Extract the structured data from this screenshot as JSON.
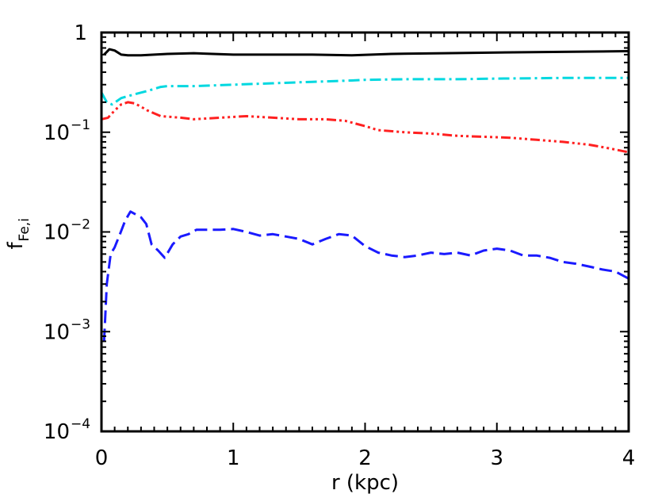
{
  "chart_data": {
    "type": "line",
    "title": "",
    "xlabel": "r (kpc)",
    "ylabel_main": "f",
    "ylabel_sub": "Fe,i",
    "xlim": [
      0,
      4
    ],
    "ylim": [
      0.0001,
      1
    ],
    "yscale": "log",
    "grid": false,
    "x_ticks": [
      {
        "value": 0,
        "label": "0"
      },
      {
        "value": 1,
        "label": "1"
      },
      {
        "value": 2,
        "label": "2"
      },
      {
        "value": 3,
        "label": "3"
      },
      {
        "value": 4,
        "label": "4"
      }
    ],
    "y_ticks": [
      {
        "value": 1,
        "base": "1",
        "exp": ""
      },
      {
        "value": 0.1,
        "base": "10",
        "exp": "−1"
      },
      {
        "value": 0.01,
        "base": "10",
        "exp": "−2"
      },
      {
        "value": 0.001,
        "base": "10",
        "exp": "−3"
      },
      {
        "value": 0.0001,
        "base": "10",
        "exp": "−4"
      }
    ],
    "series": [
      {
        "color": "#000000",
        "dash": "solid",
        "x": [
          0.02,
          0.06,
          0.1,
          0.15,
          0.2,
          0.3,
          0.5,
          0.7,
          1.0,
          1.3,
          1.6,
          1.9,
          2.2,
          2.6,
          3.0,
          3.5,
          4.0
        ],
        "y": [
          0.6,
          0.68,
          0.66,
          0.6,
          0.59,
          0.59,
          0.61,
          0.62,
          0.6,
          0.6,
          0.6,
          0.59,
          0.61,
          0.62,
          0.63,
          0.64,
          0.65
        ]
      },
      {
        "color": "#00d8e0",
        "dash": "dashdot",
        "x": [
          0.0,
          0.04,
          0.08,
          0.15,
          0.25,
          0.35,
          0.45,
          0.5,
          0.7,
          1.0,
          1.3,
          1.6,
          1.9,
          2.0,
          2.3,
          2.7,
          3.0,
          3.5,
          4.0
        ],
        "y": [
          0.25,
          0.2,
          0.19,
          0.22,
          0.24,
          0.26,
          0.285,
          0.29,
          0.29,
          0.3,
          0.31,
          0.32,
          0.33,
          0.335,
          0.34,
          0.34,
          0.345,
          0.35,
          0.35
        ]
      },
      {
        "color": "#ff2020",
        "dash": "dashdotdotdot",
        "x": [
          0.0,
          0.05,
          0.1,
          0.15,
          0.2,
          0.25,
          0.3,
          0.35,
          0.45,
          0.6,
          0.7,
          0.9,
          1.1,
          1.3,
          1.5,
          1.7,
          1.85,
          2.0,
          2.1,
          2.3,
          2.5,
          2.7,
          2.9,
          3.1,
          3.3,
          3.5,
          3.7,
          3.85,
          4.0
        ],
        "y": [
          0.135,
          0.14,
          0.165,
          0.19,
          0.2,
          0.195,
          0.18,
          0.165,
          0.145,
          0.14,
          0.135,
          0.14,
          0.145,
          0.14,
          0.135,
          0.135,
          0.13,
          0.115,
          0.105,
          0.1,
          0.097,
          0.092,
          0.09,
          0.088,
          0.084,
          0.08,
          0.075,
          0.069,
          0.063
        ]
      },
      {
        "color": "#1a1aff",
        "dash": "dashed",
        "x": [
          0.02,
          0.04,
          0.07,
          0.1,
          0.14,
          0.18,
          0.22,
          0.26,
          0.3,
          0.34,
          0.38,
          0.43,
          0.48,
          0.54,
          0.6,
          0.66,
          0.72,
          0.8,
          0.9,
          1.0,
          1.1,
          1.2,
          1.3,
          1.4,
          1.5,
          1.6,
          1.7,
          1.8,
          1.9,
          2.0,
          2.1,
          2.2,
          2.3,
          2.4,
          2.5,
          2.6,
          2.7,
          2.8,
          2.9,
          3.0,
          3.1,
          3.2,
          3.3,
          3.4,
          3.5,
          3.6,
          3.7,
          3.8,
          3.9,
          4.0
        ],
        "y": [
          0.0008,
          0.003,
          0.006,
          0.007,
          0.0095,
          0.013,
          0.016,
          0.015,
          0.014,
          0.012,
          0.0075,
          0.0065,
          0.0055,
          0.0075,
          0.009,
          0.0095,
          0.0105,
          0.0105,
          0.0105,
          0.0107,
          0.01,
          0.0092,
          0.0095,
          0.009,
          0.0085,
          0.0075,
          0.0085,
          0.0095,
          0.0092,
          0.0072,
          0.0062,
          0.0058,
          0.0056,
          0.0058,
          0.0062,
          0.006,
          0.0062,
          0.0058,
          0.0065,
          0.0068,
          0.0065,
          0.0058,
          0.0058,
          0.0055,
          0.005,
          0.0048,
          0.0045,
          0.0042,
          0.004,
          0.0034
        ]
      }
    ]
  }
}
